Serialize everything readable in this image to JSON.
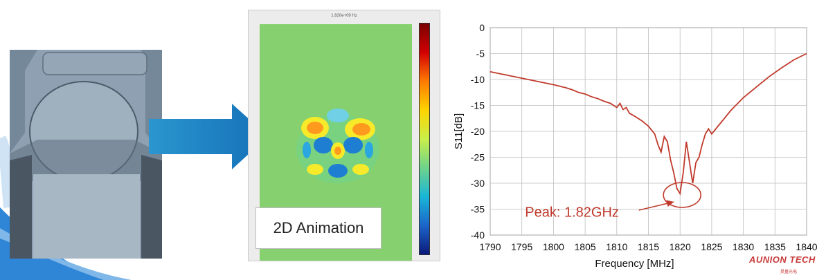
{
  "simulation": {
    "caption": "2D Animation",
    "header_text": "1.820e+09 Hz"
  },
  "branding": {
    "logo_text": "AUNION TECH",
    "logo_subtext": "昊量光电"
  },
  "colors": {
    "arrow": "#1b7fc3",
    "series": "#c0392b",
    "sim_background": "#86d06f"
  },
  "chart_data": {
    "type": "line",
    "title": "",
    "xlabel": "Frequency [MHz]",
    "ylabel": "S11[dB]",
    "xlim": [
      1790,
      1840
    ],
    "ylim": [
      -40,
      0
    ],
    "xticks": [
      1790,
      1795,
      1800,
      1805,
      1810,
      1815,
      1820,
      1825,
      1830,
      1835,
      1840
    ],
    "yticks": [
      0,
      -5,
      -10,
      -15,
      -20,
      -25,
      -30,
      -35,
      -40
    ],
    "grid": true,
    "annotation": {
      "text": "Peak: 1.82GHz",
      "x": 1820,
      "y": -32
    },
    "series": [
      {
        "x": [
          1790,
          1792,
          1794,
          1796,
          1798,
          1800,
          1802,
          1803,
          1804,
          1805,
          1806,
          1807,
          1808,
          1809,
          1810,
          1810.5,
          1811,
          1811.5,
          1812,
          1813,
          1814,
          1815,
          1816,
          1816.5,
          1817,
          1817.5,
          1818,
          1818.5,
          1819,
          1819.5,
          1820,
          1820.5,
          1821,
          1821.5,
          1822,
          1822.5,
          1823,
          1823.5,
          1824,
          1824.5,
          1825,
          1826,
          1827,
          1828,
          1830,
          1832,
          1834,
          1836,
          1838,
          1840
        ],
        "y": [
          -8.5,
          -9.0,
          -9.5,
          -10.0,
          -10.5,
          -11.0,
          -11.6,
          -12.0,
          -12.5,
          -12.8,
          -13.3,
          -13.7,
          -14.2,
          -14.6,
          -15.4,
          -14.6,
          -15.8,
          -15.4,
          -16.5,
          -17.2,
          -18.0,
          -19.0,
          -20.5,
          -22.5,
          -24.0,
          -21.0,
          -22.0,
          -25.5,
          -28.0,
          -31.0,
          -32.0,
          -28.0,
          -22.0,
          -26.0,
          -30.0,
          -26.0,
          -25.0,
          -22.5,
          -20.5,
          -19.5,
          -20.5,
          -19.0,
          -17.5,
          -16.0,
          -13.5,
          -11.5,
          -9.5,
          -7.8,
          -6.2,
          -5.0
        ]
      }
    ]
  }
}
